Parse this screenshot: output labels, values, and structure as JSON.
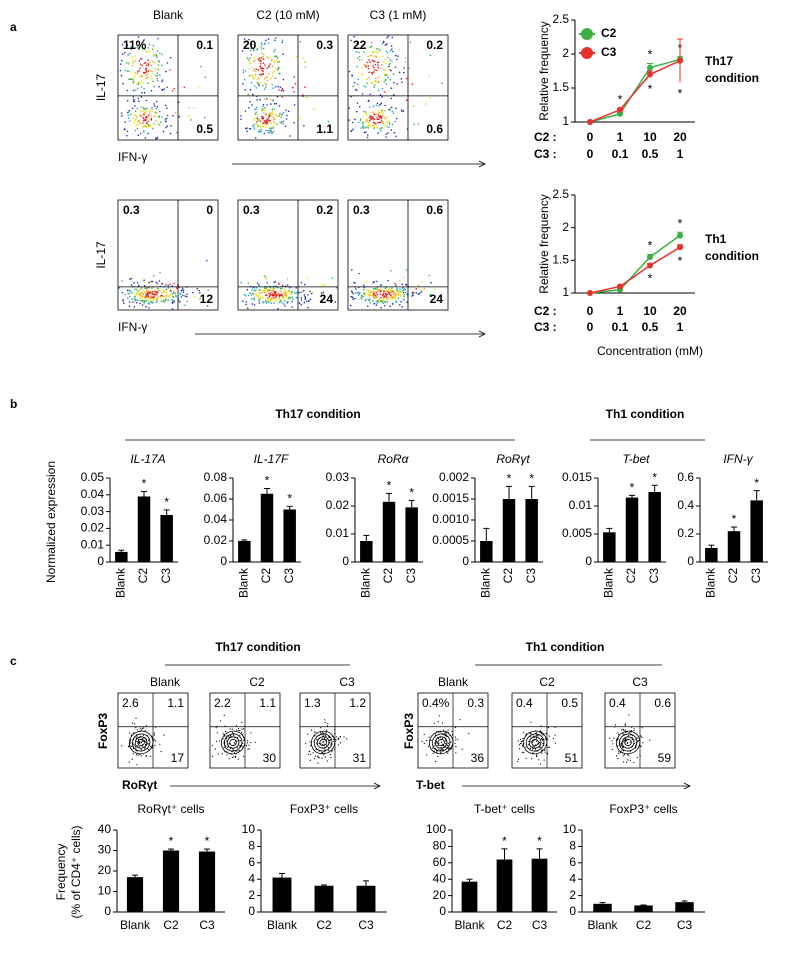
{
  "panel_labels": [
    "a",
    "b",
    "c"
  ],
  "flow_a": {
    "columns": [
      "Blank",
      "C2 (10 mM)",
      "C3 (1 mM)"
    ],
    "y_label": "IL-17",
    "x_label": "IFN-γ",
    "rows": [
      [
        {
          "ul": "11%",
          "ur": "0.1",
          "lr": "0.5"
        },
        {
          "ul": "20",
          "ur": "0.3",
          "lr": "1.1"
        },
        {
          "ul": "22",
          "ur": "0.2",
          "lr": "0.6"
        }
      ],
      [
        {
          "ul": "0.3",
          "ur": "0",
          "lr": "12"
        },
        {
          "ul": "0.3",
          "ur": "0.2",
          "lr": "24"
        },
        {
          "ul": "0.3",
          "ur": "0.6",
          "lr": "24"
        }
      ]
    ]
  },
  "b_headers": [
    "Th17 condition",
    "Th1 condition"
  ],
  "b_y_label": "Normalized expression",
  "flow_c": {
    "groups": [
      {
        "title": "Th17 condition",
        "columns": [
          "Blank",
          "C2",
          "C3"
        ],
        "y_label": "FoxP3",
        "x_label": "RoRγt",
        "plots": [
          {
            "ul": "2.6",
            "ur": "1.1",
            "lr": "17"
          },
          {
            "ul": "2.2",
            "ur": "1.1",
            "lr": "30"
          },
          {
            "ul": "1.3",
            "ur": "1.2",
            "lr": "31"
          }
        ]
      },
      {
        "title": "Th1 condition",
        "columns": [
          "Blank",
          "C2",
          "C3"
        ],
        "y_label": "FoxP3",
        "x_label": "T-bet",
        "plots": [
          {
            "ul": "0.4%",
            "ur": "0.3",
            "lr": "36"
          },
          {
            "ul": "0.4",
            "ur": "0.5",
            "lr": "51"
          },
          {
            "ul": "0.4",
            "ur": "0.6",
            "lr": "59"
          }
        ]
      }
    ]
  },
  "c_y_label": [
    "Frequency",
    "(% of CD4⁺ cells)"
  ],
  "chart_data": [
    {
      "type": "line",
      "y_label": "Relative frequency",
      "side_label": [
        "Th17",
        "condition"
      ],
      "x_row_labels": [
        "C2 :",
        "C3 :"
      ],
      "categories": [
        0,
        1,
        10,
        20
      ],
      "categories2": [
        0,
        0.1,
        0.5,
        1
      ],
      "star": "*",
      "legend": "upper left",
      "series": [
        {
          "name": "C2",
          "color": "#3cb043",
          "values": [
            1,
            1.12,
            1.8,
            1.92
          ],
          "errors": [
            0,
            0.02,
            0.06,
            0.04
          ],
          "significant": [
            false,
            false,
            true,
            true
          ]
        },
        {
          "name": "C3",
          "color": "#e8312a",
          "values": [
            1,
            1.18,
            1.7,
            1.9
          ],
          "errors": [
            0,
            0.02,
            0.05,
            0.32
          ],
          "significant": [
            false,
            true,
            true,
            true
          ]
        }
      ],
      "ylim": [
        1,
        2.5
      ],
      "yticks": [
        1,
        1.5,
        2,
        2.5
      ]
    },
    {
      "type": "line",
      "y_label": "Relative frequency",
      "side_label": [
        "Th1",
        "condition"
      ],
      "x_row_labels": [
        "C2 :",
        "C3 :"
      ],
      "x_label": "Concentration (mM)",
      "categories": [
        0,
        1,
        10,
        20
      ],
      "categories2": [
        0,
        0.1,
        0.5,
        1
      ],
      "star": "*",
      "series": [
        {
          "color": "#3cb043",
          "values": [
            1,
            1.05,
            1.55,
            1.88
          ],
          "errors": [
            0,
            0.02,
            0.04,
            0.05
          ],
          "significant": [
            false,
            false,
            true,
            true
          ]
        },
        {
          "color": "#e8312a",
          "values": [
            1,
            1.1,
            1.42,
            1.7
          ],
          "errors": [
            0,
            0.02,
            0.03,
            0.04
          ],
          "significant": [
            false,
            false,
            true,
            true
          ]
        }
      ],
      "ylim": [
        1,
        2.5
      ],
      "yticks": [
        1,
        1.5,
        2,
        2.5
      ]
    },
    {
      "type": "bar",
      "title": "IL-17A",
      "italic": true,
      "rotate_x_labels": true,
      "categories": [
        "Blank",
        "C2",
        "C3"
      ],
      "values": [
        0.006,
        0.039,
        0.028
      ],
      "errors": [
        0.001,
        0.003,
        0.003
      ],
      "significant": [
        false,
        true,
        true
      ],
      "star": "*",
      "color": "#000000",
      "ylim": [
        0,
        0.05
      ],
      "yticks": [
        0,
        0.01,
        0.02,
        0.03,
        0.04,
        0.05
      ]
    },
    {
      "type": "bar",
      "title": "IL-17F",
      "italic": true,
      "rotate_x_labels": true,
      "categories": [
        "Blank",
        "C2",
        "C3"
      ],
      "values": [
        0.02,
        0.065,
        0.05
      ],
      "errors": [
        0.001,
        0.005,
        0.003
      ],
      "significant": [
        false,
        true,
        true
      ],
      "star": "*",
      "color": "#000000",
      "ylim": [
        0,
        0.08
      ],
      "yticks": [
        0,
        0.02,
        0.04,
        0.06,
        0.08
      ]
    },
    {
      "type": "bar",
      "title": "RoRα",
      "italic": true,
      "rotate_x_labels": true,
      "categories": [
        "Blank",
        "C2",
        "C3"
      ],
      "values": [
        0.0075,
        0.0215,
        0.0195
      ],
      "errors": [
        0.002,
        0.003,
        0.0025
      ],
      "significant": [
        false,
        true,
        true
      ],
      "star": "*",
      "color": "#000000",
      "ylim": [
        0,
        0.03
      ],
      "yticks": [
        0,
        0.01,
        0.02,
        0.03
      ]
    },
    {
      "type": "bar",
      "title": "RoRγt",
      "italic": true,
      "rotate_x_labels": true,
      "categories": [
        "Blank",
        "C2",
        "C3"
      ],
      "values": [
        0.0005,
        0.0015,
        0.0015
      ],
      "errors": [
        0.0003,
        0.0003,
        0.0003
      ],
      "significant": [
        false,
        true,
        true
      ],
      "star": "*",
      "color": "#000000",
      "ylim": [
        0,
        0.002
      ],
      "yticks": [
        0,
        0.0005,
        {
          "value": 0.001,
          "label": "0.0010"
        },
        0.0015,
        0.002
      ]
    },
    {
      "type": "bar",
      "title": "T-bet",
      "italic": true,
      "rotate_x_labels": true,
      "categories": [
        "Blank",
        "C2",
        "C3"
      ],
      "values": [
        0.0053,
        0.0115,
        0.0125
      ],
      "errors": [
        0.0007,
        0.0004,
        0.0012
      ],
      "significant": [
        false,
        true,
        true
      ],
      "star": "*",
      "color": "#000000",
      "ylim": [
        0,
        0.015
      ],
      "yticks": [
        0,
        0.005,
        0.01,
        0.015
      ]
    },
    {
      "type": "bar",
      "title": "IFN-γ",
      "italic": true,
      "rotate_x_labels": true,
      "categories": [
        "Blank",
        "C2",
        "C3"
      ],
      "values": [
        0.1,
        0.22,
        0.44
      ],
      "errors": [
        0.02,
        0.03,
        0.07
      ],
      "significant": [
        false,
        true,
        true
      ],
      "star": "*",
      "color": "#000000",
      "ylim": [
        0,
        0.6
      ],
      "yticks": [
        0,
        0.2,
        0.4,
        0.6
      ]
    },
    {
      "type": "bar",
      "title": "RoRγt⁺ cells",
      "categories": [
        "Blank",
        "C2",
        "C3"
      ],
      "values": [
        17,
        30,
        29.5
      ],
      "errors": [
        1,
        0.7,
        1.2
      ],
      "significant": [
        false,
        true,
        true
      ],
      "star": "*",
      "color": "#000000",
      "ylim": [
        0,
        40
      ],
      "yticks": [
        0,
        10,
        20,
        30,
        40
      ]
    },
    {
      "type": "bar",
      "title": "FoxP3⁺ cells",
      "categories": [
        "Blank",
        "C2",
        "C3"
      ],
      "values": [
        4.2,
        3.2,
        3.2
      ],
      "errors": [
        0.5,
        0.1,
        0.6
      ],
      "color": "#000000",
      "ylim": [
        0,
        10
      ],
      "yticks": [
        0,
        2,
        4,
        6,
        8,
        10
      ]
    },
    {
      "type": "bar",
      "title": "T-bet⁺ cells",
      "categories": [
        "Blank",
        "C2",
        "C3"
      ],
      "values": [
        37,
        64,
        65
      ],
      "errors": [
        3,
        13,
        12
      ],
      "significant": [
        false,
        true,
        true
      ],
      "star": "*",
      "color": "#000000",
      "ylim": [
        0,
        100
      ],
      "yticks": [
        0,
        20,
        40,
        60,
        80,
        100
      ]
    },
    {
      "type": "bar",
      "title": "FoxP3⁺ cells",
      "categories": [
        "Blank",
        "C2",
        "C3"
      ],
      "values": [
        1,
        0.8,
        1.2
      ],
      "errors": [
        0.15,
        0.05,
        0.15
      ],
      "color": "#000000",
      "ylim": [
        0,
        10
      ],
      "yticks": [
        0,
        2,
        4,
        6,
        8,
        10
      ]
    }
  ]
}
